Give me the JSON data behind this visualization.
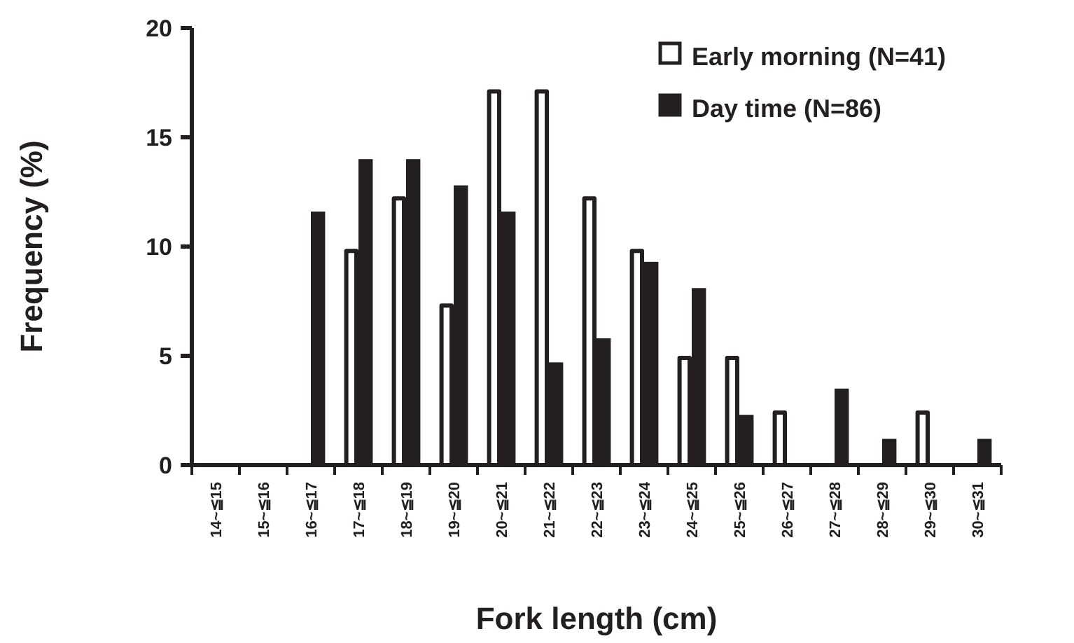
{
  "chart_data": {
    "type": "bar",
    "xlabel": "Fork length (cm)",
    "ylabel": "Frequency (%)",
    "categories": [
      "14~≦15",
      "15~≦16",
      "16~≦17",
      "17~≦18",
      "18~≦19",
      "19~≦20",
      "20~≦21",
      "21~≦22",
      "22~≦23",
      "23~≦24",
      "24~≦25",
      "25~≦26",
      "26~≦27",
      "27~≦28",
      "28~≦29",
      "29~≦30",
      "30~≦31"
    ],
    "series": [
      {
        "name": "Early morning (N=41)",
        "color": "#ffffff",
        "values": [
          0,
          0,
          0,
          9.8,
          12.2,
          7.3,
          17.1,
          17.1,
          12.2,
          9.8,
          4.9,
          4.9,
          2.4,
          0,
          0,
          2.4,
          0
        ]
      },
      {
        "name": "Day time (N=86)",
        "color": "#231f20",
        "values": [
          0,
          0,
          11.6,
          14.0,
          14.0,
          12.8,
          11.6,
          4.7,
          5.8,
          9.3,
          8.1,
          2.3,
          0,
          3.5,
          1.2,
          0,
          1.2
        ]
      }
    ],
    "ylim": [
      0,
      20
    ],
    "yticks": [
      0,
      5,
      10,
      15,
      20
    ],
    "grid": false,
    "legend": "top right"
  }
}
